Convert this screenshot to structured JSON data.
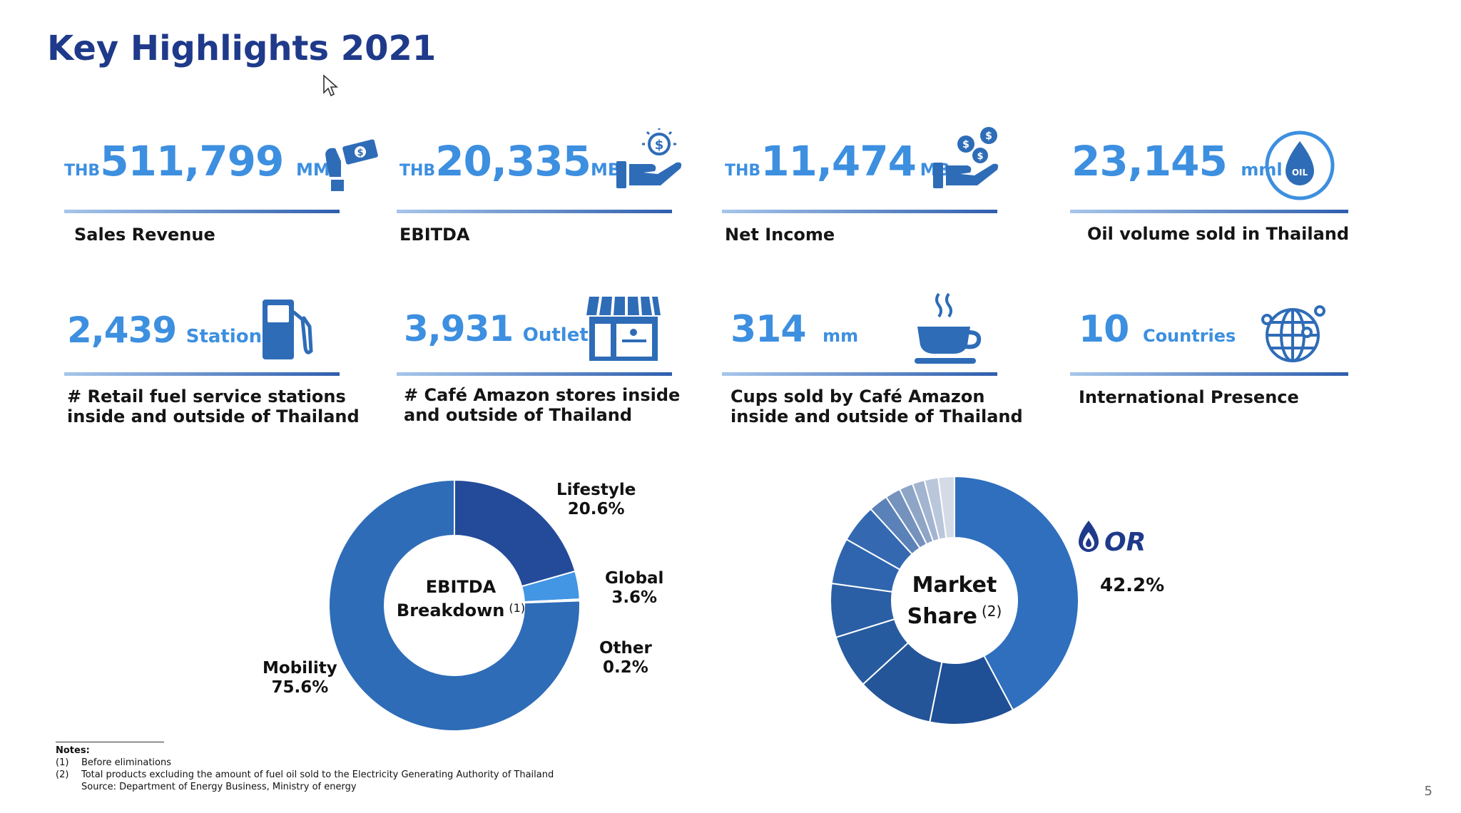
{
  "page": {
    "title": "Key Highlights 2021",
    "page_number": "5"
  },
  "kpis": [
    {
      "prefix": "THB",
      "value": "511,799",
      "unit": "MM",
      "label": "Sales Revenue",
      "icon": "hand-cash-icon"
    },
    {
      "prefix": "THB",
      "value": "20,335",
      "unit": "MB",
      "label": "EBITDA",
      "icon": "hand-coin-icon"
    },
    {
      "prefix": "THB",
      "value": "11,474",
      "unit": "MB",
      "label": "Net Income",
      "icon": "hand-coins-icon"
    },
    {
      "prefix": "",
      "value": "23,145",
      "unit": "mml",
      "label": "Oil volume sold in Thailand",
      "icon": "oil-drop-icon"
    },
    {
      "prefix": "",
      "value": "2,439",
      "unit": "Stations",
      "label_lines": [
        "# Retail fuel service stations",
        "inside and outside of Thailand"
      ],
      "icon": "fuel-pump-icon"
    },
    {
      "prefix": "",
      "value": "3,931",
      "unit": "Outlets",
      "label_lines": [
        "# Café Amazon stores inside",
        "and outside of Thailand"
      ],
      "icon": "storefront-icon"
    },
    {
      "prefix": "",
      "value": "314",
      "unit": "mm",
      "label_lines": [
        "Cups sold by Café Amazon",
        "inside and outside of Thailand"
      ],
      "icon": "coffee-cup-icon"
    },
    {
      "prefix": "",
      "value": "10",
      "unit": "Countries",
      "label": "International Presence",
      "icon": "globe-network-icon"
    }
  ],
  "colors": {
    "title": "#1f3a8a",
    "value": "#3d8fe0",
    "rule_start": "#a7c6ea",
    "rule_end": "#2f5eae"
  },
  "chart_data": [
    {
      "type": "pie",
      "center_label": [
        "EBITDA",
        "Breakdown"
      ],
      "center_note": "(1)",
      "slices": [
        {
          "name": "Lifestyle",
          "value": 20.6,
          "label": "20.6%",
          "color": "#244a9a"
        },
        {
          "name": "Global",
          "value": 3.6,
          "label": "3.6%",
          "color": "#4296e4"
        },
        {
          "name": "Other",
          "value": 0.2,
          "label": "0.2%",
          "color": "#7fb6ec"
        },
        {
          "name": "Mobility",
          "value": 75.6,
          "label": "75.6%",
          "color": "#2e6cb7"
        }
      ]
    },
    {
      "type": "pie",
      "center_label": [
        "Market",
        "Share"
      ],
      "center_note": "(2)",
      "slices": [
        {
          "name": "OR",
          "value": 42.2,
          "label": "42.2%",
          "color": "#2f6fbe"
        },
        {
          "value": 11.0,
          "color": "#1f4f94"
        },
        {
          "value": 10.0,
          "color": "#245598"
        },
        {
          "value": 7.0,
          "color": "#275b9f"
        },
        {
          "value": 7.0,
          "color": "#2a5fa6"
        },
        {
          "value": 6.0,
          "color": "#2e65ae"
        },
        {
          "value": 5.0,
          "color": "#3469b2"
        },
        {
          "value": 2.5,
          "color": "#5b82b8"
        },
        {
          "value": 2.0,
          "color": "#7592bd"
        },
        {
          "value": 1.8,
          "color": "#8ea5c6"
        },
        {
          "value": 1.6,
          "color": "#a2b4cf"
        },
        {
          "value": 1.8,
          "color": "#bac7da"
        },
        {
          "value": 2.1,
          "color": "#d4dbe6"
        }
      ]
    }
  ],
  "notes": {
    "title": "Notes:",
    "items": [
      {
        "n": "(1)",
        "text": "Before eliminations"
      },
      {
        "n": "(2)",
        "text": "Total products excluding the amount of fuel oil sold to the Electricity Generating Authority of Thailand"
      },
      {
        "n": "",
        "text": "Source: Department of Energy Business, Ministry of energy"
      }
    ]
  }
}
